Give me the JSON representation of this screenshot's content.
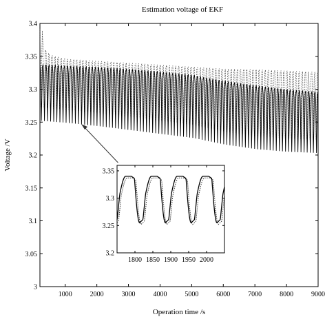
{
  "chart_data": [
    {
      "type": "line",
      "title": "Estimation voltage of EKF",
      "xlabel": "Operation time /s",
      "ylabel": "Voltage /V",
      "xlim": [
        200,
        9000
      ],
      "ylim": [
        3.0,
        3.4
      ],
      "xticks": [
        1000,
        2000,
        3000,
        4000,
        5000,
        6000,
        7000,
        8000,
        9000
      ],
      "yticks": [
        3.0,
        3.05,
        3.1,
        3.15,
        3.2,
        3.25,
        3.3,
        3.35,
        3.4
      ],
      "grid": false,
      "series": [
        {
          "style": "solid",
          "envelope_x": [
            200,
            1000,
            2000,
            3000,
            4000,
            5000,
            6000,
            7000,
            8000,
            9000
          ],
          "upper": [
            3.338,
            3.336,
            3.334,
            3.331,
            3.327,
            3.322,
            3.313,
            3.306,
            3.3,
            3.296
          ],
          "lower": [
            3.252,
            3.249,
            3.244,
            3.238,
            3.232,
            3.226,
            3.216,
            3.209,
            3.205,
            3.203
          ]
        },
        {
          "style": "dashed",
          "envelope_x": [
            200,
            300,
            500,
            1000,
            2000,
            3000,
            4000,
            5000,
            6000,
            7000,
            8000,
            9000
          ],
          "upper": [
            3.392,
            3.362,
            3.352,
            3.346,
            3.343,
            3.34,
            3.337,
            3.334,
            3.331,
            3.33,
            3.328,
            3.326
          ]
        }
      ],
      "cycles": 90
    },
    {
      "type": "line",
      "xlim": [
        1750,
        2050
      ],
      "ylim": [
        3.2,
        3.36
      ],
      "xticks": [
        1800,
        1850,
        1900,
        1950,
        2000
      ],
      "yticks": [
        3.2,
        3.25,
        3.3,
        3.35
      ],
      "period": 72,
      "phase": 1790,
      "high": 3.34,
      "low": 3.255
    }
  ]
}
